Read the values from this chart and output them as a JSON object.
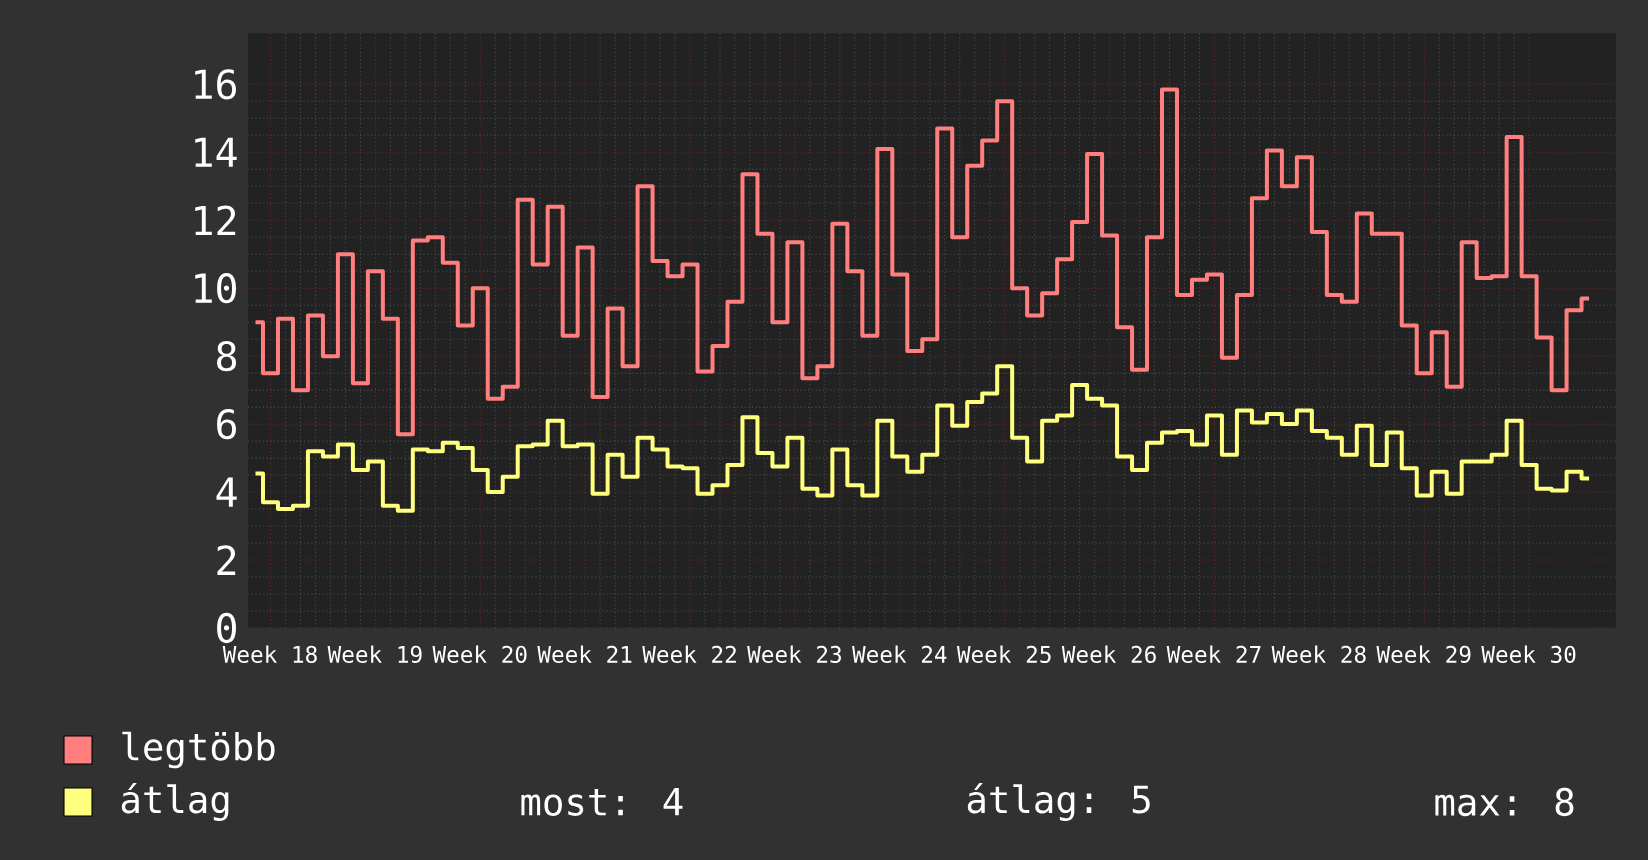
{
  "chart_data": {
    "type": "step",
    "categories": [
      null,
      "Week 18",
      null,
      null,
      null,
      null,
      null,
      null,
      "Week 19",
      null,
      null,
      null,
      null,
      null,
      null,
      "Week 20",
      null,
      null,
      null,
      null,
      null,
      null,
      "Week 21",
      null,
      null,
      null,
      null,
      null,
      null,
      "Week 22",
      null,
      null,
      null,
      null,
      null,
      null,
      "Week 23",
      null,
      null,
      null,
      null,
      null,
      null,
      "Week 24",
      null,
      null,
      null,
      null,
      null,
      null,
      "Week 25",
      null,
      null,
      null,
      null,
      null,
      null,
      "Week 26",
      null,
      null,
      null,
      null,
      null,
      null,
      "Week 27",
      null,
      null,
      null,
      null,
      null,
      null,
      "Week 28",
      null,
      null,
      null,
      null,
      null,
      null,
      "Week 29",
      null,
      null,
      null,
      null,
      null,
      null,
      "Week 30",
      null,
      null,
      null,
      null
    ],
    "ylim": [
      0,
      17.5
    ],
    "yticks": [
      0,
      2,
      4,
      6,
      8,
      10,
      12,
      14,
      16
    ],
    "grid": true,
    "legend": "bottom left",
    "series": [
      {
        "name": "legtöbb",
        "color": "#ff7f7f",
        "values": [
          9.0,
          7.5,
          9.1,
          7.0,
          9.2,
          8.0,
          11.0,
          7.2,
          10.5,
          9.1,
          5.7,
          11.4,
          11.5,
          10.75,
          8.9,
          10.0,
          6.75,
          7.1,
          12.6,
          10.7,
          12.4,
          8.6,
          11.2,
          6.8,
          9.4,
          7.7,
          13.0,
          10.8,
          10.35,
          10.7,
          7.55,
          8.3,
          9.6,
          13.35,
          11.6,
          9.0,
          11.35,
          7.35,
          7.7,
          11.9,
          10.5,
          8.6,
          14.1,
          10.4,
          8.15,
          8.5,
          14.7,
          11.5,
          13.6,
          14.35,
          15.5,
          10.0,
          9.2,
          9.85,
          10.85,
          11.95,
          13.95,
          11.55,
          8.85,
          7.6,
          11.5,
          15.85,
          9.8,
          10.25,
          10.4,
          7.95,
          9.8,
          12.65,
          14.05,
          13.0,
          13.85,
          11.65,
          9.8,
          9.6,
          12.2,
          11.6,
          11.6,
          8.9,
          7.5,
          8.7,
          7.1,
          11.35,
          10.3,
          10.35,
          14.45,
          10.35,
          8.55,
          7.0,
          9.35,
          9.7
        ]
      },
      {
        "name": "átlag",
        "color": "#ffff7f",
        "values": [
          4.55,
          3.7,
          3.5,
          3.6,
          5.2,
          5.05,
          5.4,
          4.65,
          4.9,
          3.6,
          3.45,
          5.25,
          5.2,
          5.45,
          5.3,
          4.65,
          4.0,
          4.45,
          5.35,
          5.4,
          6.1,
          5.35,
          5.4,
          3.95,
          5.1,
          4.45,
          5.6,
          5.25,
          4.75,
          4.7,
          3.95,
          4.2,
          4.8,
          6.2,
          5.15,
          4.75,
          5.6,
          4.1,
          3.9,
          5.25,
          4.2,
          3.9,
          6.1,
          5.05,
          4.6,
          5.1,
          6.55,
          5.95,
          6.65,
          6.9,
          7.7,
          5.6,
          4.9,
          6.1,
          6.25,
          7.15,
          6.75,
          6.55,
          5.05,
          4.65,
          5.45,
          5.75,
          5.8,
          5.4,
          6.25,
          5.1,
          6.4,
          6.05,
          6.3,
          6.0,
          6.4,
          5.8,
          5.6,
          5.1,
          5.95,
          4.8,
          5.75,
          4.7,
          3.9,
          4.6,
          3.95,
          4.9,
          4.9,
          5.1,
          6.1,
          4.8,
          4.1,
          4.05,
          4.6,
          4.4
        ]
      }
    ],
    "annotations": [
      "most: 4",
      "átlag: 5",
      "max: 8"
    ]
  }
}
